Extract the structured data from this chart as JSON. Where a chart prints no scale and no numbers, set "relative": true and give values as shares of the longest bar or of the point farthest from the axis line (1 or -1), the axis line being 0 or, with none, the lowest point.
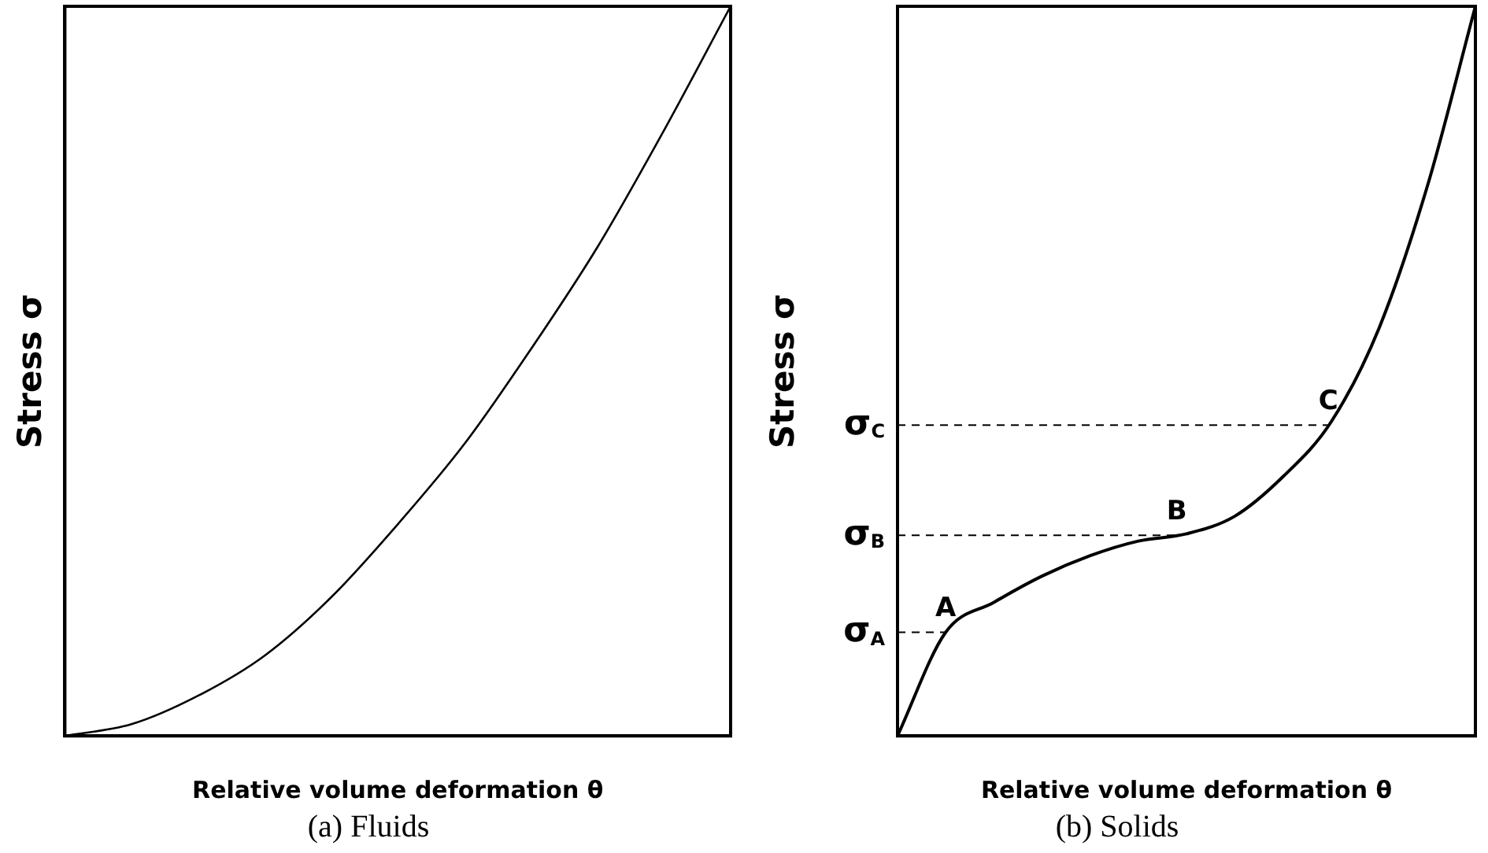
{
  "chart_data": [
    {
      "type": "line",
      "relative": true,
      "title": "(a) Fluids",
      "xlabel": "Relative volume deformation θ",
      "ylabel": "Stress σ",
      "legend": false,
      "grid": false,
      "marker": "none",
      "line_style": "solid",
      "categories": [
        null,
        null,
        null,
        null,
        null,
        null,
        null,
        null,
        null,
        null,
        null
      ],
      "series": [
        {
          "color": "#000000",
          "values": [
            0,
            0.016,
            0.055,
            0.11,
            0.19,
            0.29,
            0.4,
            0.53,
            0.67,
            0.83,
            1.0
          ]
        }
      ]
    },
    {
      "type": "line",
      "relative": true,
      "title": "(b) Solids",
      "xlabel": "Relative volume deformation θ",
      "ylabel": "Stress σ",
      "legend": false,
      "grid": false,
      "marker": "none",
      "line_style": "solid",
      "categories": [
        null,
        null,
        null,
        null,
        null,
        null,
        null,
        null,
        null,
        null,
        null,
        null,
        null
      ],
      "series": [
        {
          "color": "#000000",
          "values": [
            0,
            0.142,
            0.183,
            0.219,
            0.247,
            0.267,
            0.277,
            0.301,
            0.355,
            0.43,
            0.559,
            0.753,
            1.0
          ]
        }
      ],
      "ref_lines": [
        {
          "axis": "y",
          "value": 0.142,
          "label": "σ$_{A}$",
          "line_style": "dashed"
        },
        {
          "axis": "y",
          "value": 0.275,
          "label": "σ$_{B}$",
          "line_style": "dashed"
        },
        {
          "axis": "y",
          "value": 0.426,
          "label": "σ$_{C}$",
          "line_style": "dashed"
        }
      ],
      "annotations": [
        {
          "text": "A",
          "y": 0.142
        },
        {
          "text": "B",
          "y": 0.275
        },
        {
          "text": "C",
          "y": 0.426
        }
      ]
    }
  ]
}
